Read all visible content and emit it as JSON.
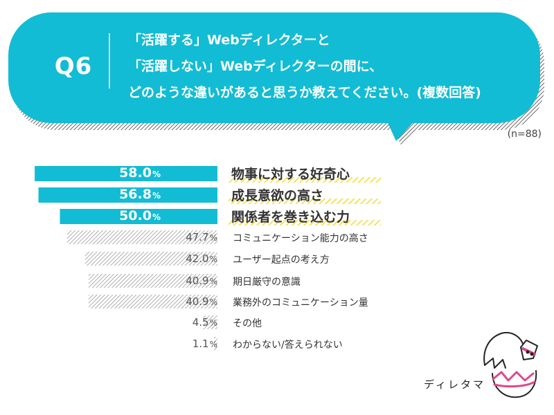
{
  "header": {
    "question_no": "Q6",
    "question_lines": [
      "「活躍する」Webディレクターと",
      "「活躍しない」Webディレクターの間に、",
      "どのような違いがあると思うか教えてください。(複数回答)"
    ],
    "sample_size": "(n=88)"
  },
  "colors": {
    "accent": "#12BCD4",
    "highlight": "#F5E03C",
    "gray_hatch": "#9A9A9A"
  },
  "chart_data": {
    "type": "bar",
    "orientation": "horizontal",
    "title": "「活躍する」Webディレクターと「活躍しない」Webディレクターの間に、どのような違いがあると思うか教えてください。(複数回答)",
    "xlabel": "",
    "ylabel": "",
    "xlim": [
      0,
      60
    ],
    "unit": "%",
    "categories": [
      "物事に対する好奇心",
      "成長意欲の高さ",
      "関係者を巻き込む力",
      "コミュニケーション能力の高さ",
      "ユーザー起点の考え方",
      "期日厳守の意識",
      "業務外のコミュニケーション量",
      "その他",
      "わからない/答えられない"
    ],
    "values": [
      58.0,
      56.8,
      50.0,
      47.7,
      42.0,
      40.9,
      40.9,
      4.5,
      1.1
    ],
    "value_labels": [
      "58.0",
      "56.8",
      "50.0",
      "47.7",
      "42.0",
      "40.9",
      "40.9",
      "4.5",
      "1.1"
    ],
    "highlighted_top": 3
  },
  "brand": {
    "mascot_name": "ディレタマ"
  }
}
